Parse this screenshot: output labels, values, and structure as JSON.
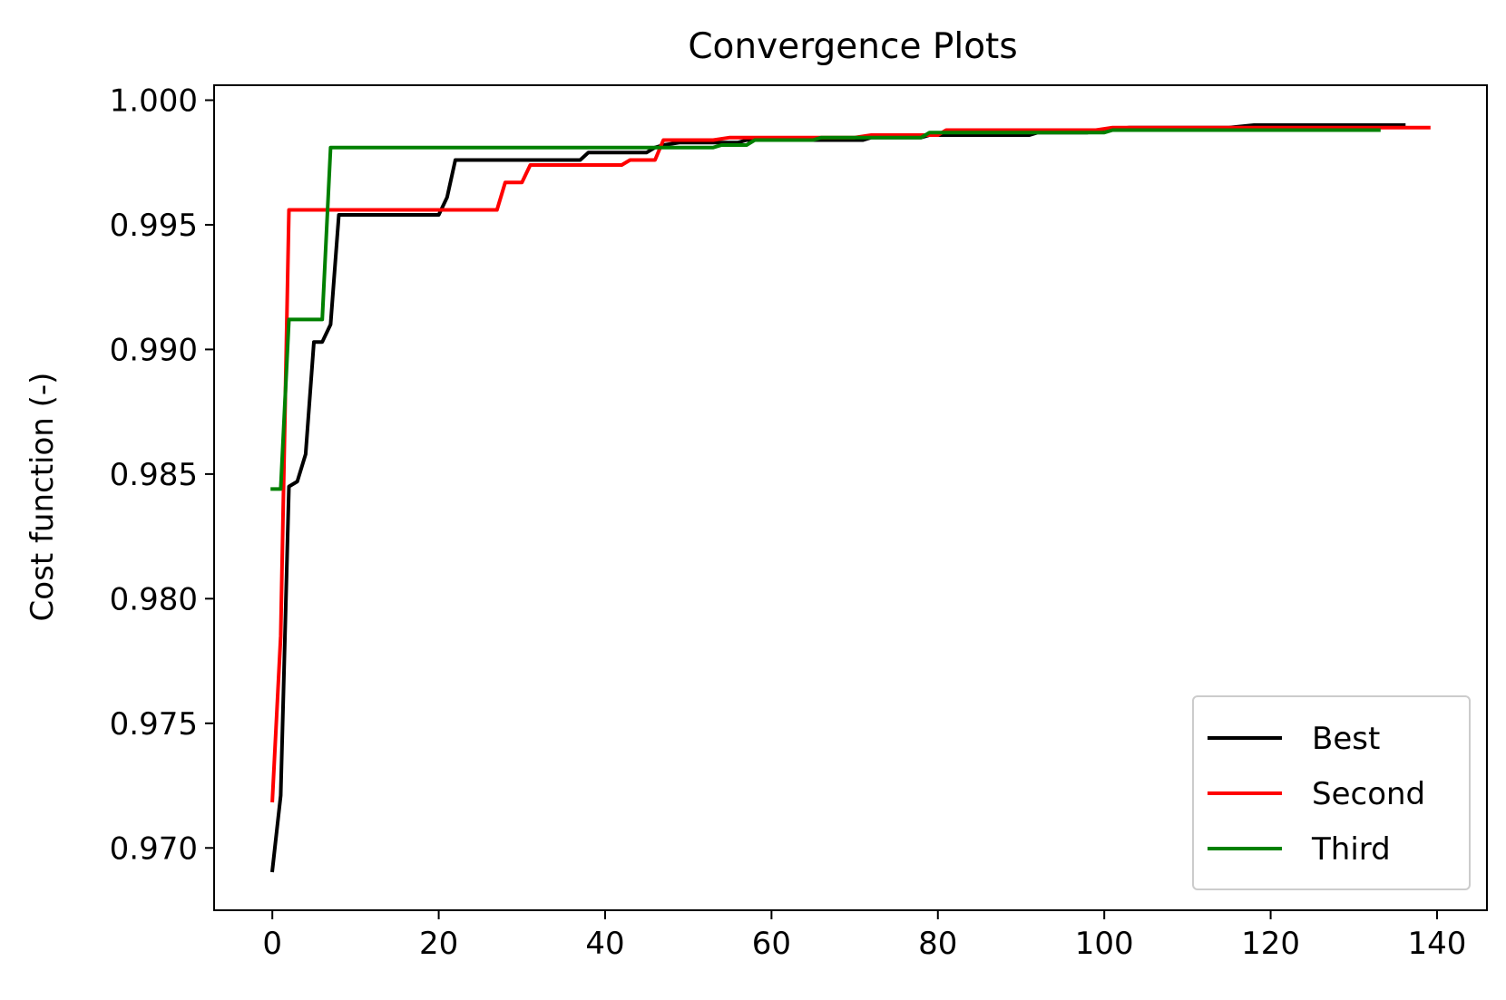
{
  "chart_data": {
    "type": "line",
    "title": "Convergence Plots",
    "xlabel": "",
    "ylabel": "Cost function (-)",
    "xlim": [
      -7,
      146
    ],
    "ylim": [
      0.9675,
      1.0006
    ],
    "xticks": [
      0,
      20,
      40,
      60,
      80,
      100,
      120,
      140
    ],
    "xtick_labels": [
      "0",
      "20",
      "40",
      "60",
      "80",
      "100",
      "120",
      "140"
    ],
    "yticks": [
      0.97,
      0.975,
      0.98,
      0.985,
      0.99,
      0.995,
      1.0
    ],
    "ytick_labels": [
      "0.970",
      "0.975",
      "0.980",
      "0.985",
      "0.990",
      "0.995",
      "1.000"
    ],
    "grid": false,
    "legend_position": "lower-right",
    "series": [
      {
        "name": "Best",
        "color": "#000000",
        "points": [
          [
            0,
            0.9691
          ],
          [
            1,
            0.9721
          ],
          [
            2,
            0.9845
          ],
          [
            3,
            0.9847
          ],
          [
            4,
            0.9858
          ],
          [
            5,
            0.9903
          ],
          [
            6,
            0.9903
          ],
          [
            7,
            0.991
          ],
          [
            8,
            0.9954
          ],
          [
            20,
            0.9954
          ],
          [
            21,
            0.9961
          ],
          [
            22,
            0.9976
          ],
          [
            37,
            0.9976
          ],
          [
            38,
            0.9979
          ],
          [
            45,
            0.9979
          ],
          [
            46,
            0.9981
          ],
          [
            47,
            0.9982
          ],
          [
            49,
            0.9983
          ],
          [
            56,
            0.9983
          ],
          [
            57,
            0.9984
          ],
          [
            71,
            0.9984
          ],
          [
            72,
            0.9985
          ],
          [
            78,
            0.9985
          ],
          [
            79,
            0.9986
          ],
          [
            91,
            0.9986
          ],
          [
            92,
            0.9987
          ],
          [
            98,
            0.9987
          ],
          [
            100,
            0.9988
          ],
          [
            103,
            0.9989
          ],
          [
            115,
            0.9989
          ],
          [
            118,
            0.999
          ],
          [
            136,
            0.999
          ]
        ]
      },
      {
        "name": "Second",
        "color": "#ff0000",
        "points": [
          [
            0,
            0.9719
          ],
          [
            1,
            0.9785
          ],
          [
            2,
            0.9956
          ],
          [
            27,
            0.9956
          ],
          [
            28,
            0.9967
          ],
          [
            30,
            0.9967
          ],
          [
            31,
            0.9974
          ],
          [
            42,
            0.9974
          ],
          [
            43,
            0.9976
          ],
          [
            46,
            0.9976
          ],
          [
            47,
            0.9984
          ],
          [
            53,
            0.9984
          ],
          [
            55,
            0.9985
          ],
          [
            70,
            0.9985
          ],
          [
            72,
            0.9986
          ],
          [
            80,
            0.9986
          ],
          [
            81,
            0.9988
          ],
          [
            99,
            0.9988
          ],
          [
            101,
            0.9989
          ],
          [
            139,
            0.9989
          ]
        ]
      },
      {
        "name": "Third",
        "color": "#008000",
        "points": [
          [
            0,
            0.9844
          ],
          [
            1,
            0.9844
          ],
          [
            2,
            0.9912
          ],
          [
            6,
            0.9912
          ],
          [
            7,
            0.9981
          ],
          [
            53,
            0.9981
          ],
          [
            54,
            0.9982
          ],
          [
            57,
            0.9982
          ],
          [
            58,
            0.9984
          ],
          [
            65,
            0.9984
          ],
          [
            66,
            0.9985
          ],
          [
            78,
            0.9985
          ],
          [
            79,
            0.9987
          ],
          [
            100,
            0.9987
          ],
          [
            101,
            0.9988
          ],
          [
            133,
            0.9988
          ]
        ]
      }
    ]
  }
}
